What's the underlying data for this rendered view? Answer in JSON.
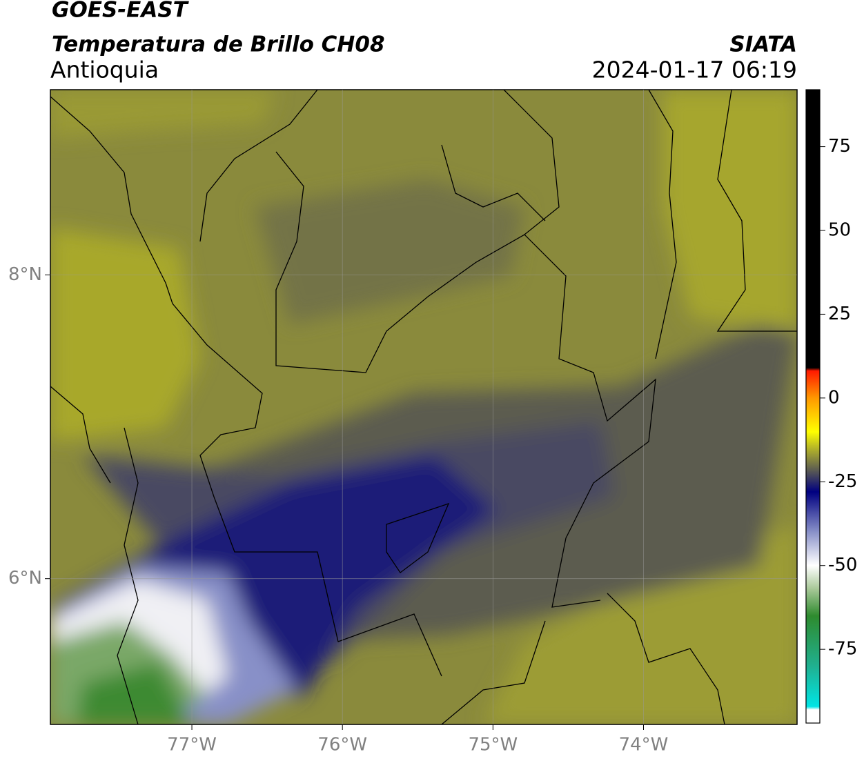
{
  "header": {
    "title": "GOES-EAST",
    "subtitle": "Temperatura de Brillo CH08",
    "region": "Antioquia",
    "source": "SIATA",
    "datetime": "2024-01-17 06:19"
  },
  "map": {
    "xlim": [
      -77.94,
      -72.98
    ],
    "ylim": [
      5.04,
      9.22
    ],
    "xticks": [
      {
        "value": -77,
        "label": "77°W"
      },
      {
        "value": -76,
        "label": "76°W"
      },
      {
        "value": -75,
        "label": "75°W"
      },
      {
        "value": -74,
        "label": "74°W"
      }
    ],
    "yticks": [
      {
        "value": 6,
        "label": "6°N"
      },
      {
        "value": 8,
        "label": "8°N"
      }
    ],
    "grid": true
  },
  "colorbar": {
    "clim": [
      -97,
      92
    ],
    "ticks": [
      -75,
      -50,
      -25,
      0,
      25,
      50,
      75
    ]
  }
}
